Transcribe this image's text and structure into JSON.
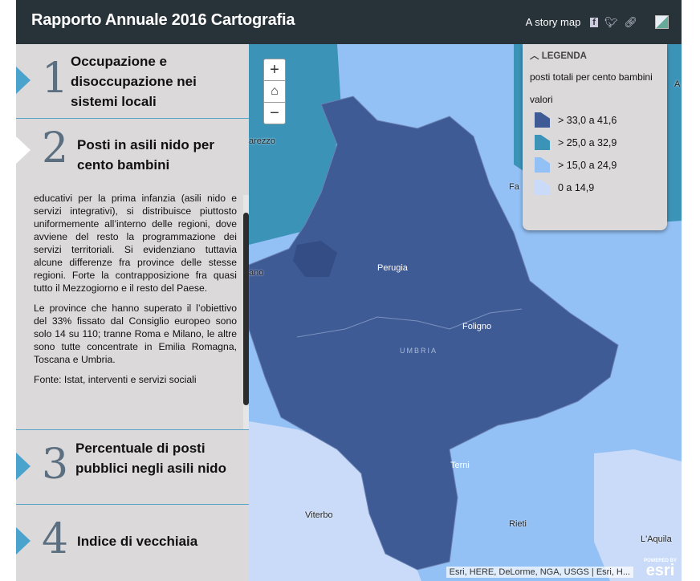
{
  "header": {
    "title": "Rapporto Annuale 2016 Cartografia",
    "story_map_label": "A story map",
    "icons": [
      "facebook-icon",
      "twitter-icon",
      "link-icon",
      "broken-image-icon"
    ]
  },
  "sections": [
    {
      "number": "1",
      "title": "Occupazione e disoccupazione nei sistemi locali"
    },
    {
      "number": "2",
      "title": "Posti in asili nido per cento bambini"
    },
    {
      "number": "3",
      "title": "Percentuale di posti pubblici negli asili nido"
    },
    {
      "number": "4",
      "title": "Indice di vecchiaia"
    }
  ],
  "content": {
    "paragraphs": [
      "educativi per la prima infanzia (asili nido e servizi integrativi), si distribuisce piuttosto uniformemente all’interno delle regioni, dove avviene del resto la programmazione dei servizi territoriali. Si evidenziano tuttavia alcune differenze fra province delle stesse regioni. Forte la contrapposizione fra quasi tutto il Mezzogiorno e il resto del Paese.",
      "Le province che hanno superato il l’obiettivo del 33% fissato dal Consiglio europeo sono solo 14 su 110; tranne Roma e Milano, le altre sono tutte concentrate in Emilia Romagna, Toscana e Umbria.",
      "Fonte: Istat, interventi e servizi sociali"
    ]
  },
  "map": {
    "zoom_in": "+",
    "zoom_out": "−",
    "home_icon": "home-icon",
    "labels": {
      "arezzo": "arezzo",
      "ano": "ano",
      "perugia": "Perugia",
      "foligno": "Foligno",
      "umbria": "UMBRIA",
      "terni": "Terni",
      "viterbo": "Viterbo",
      "rieti": "Rieti",
      "aquila": "L'Aquila",
      "fa": "Fa",
      "a": "A"
    },
    "attribution": "Esri, HERE, DeLorme, NGA, USGS | Esri, H...",
    "esri_powered": "POWERED BY",
    "esri_logo": "esri"
  },
  "legend": {
    "header": "LEGENDA",
    "layer": "posti totali per cento bambini",
    "field": "valori",
    "items": [
      {
        "label": "> 33,0 a 41,6",
        "color": "#3f5b95"
      },
      {
        "label": "> 25,0 a 32,9",
        "color": "#3c93b8"
      },
      {
        "label": "> 15,0 a 24,9",
        "color": "#93c0f5"
      },
      {
        "label": "0 a 14,9",
        "color": "#c9dbf8"
      }
    ]
  }
}
